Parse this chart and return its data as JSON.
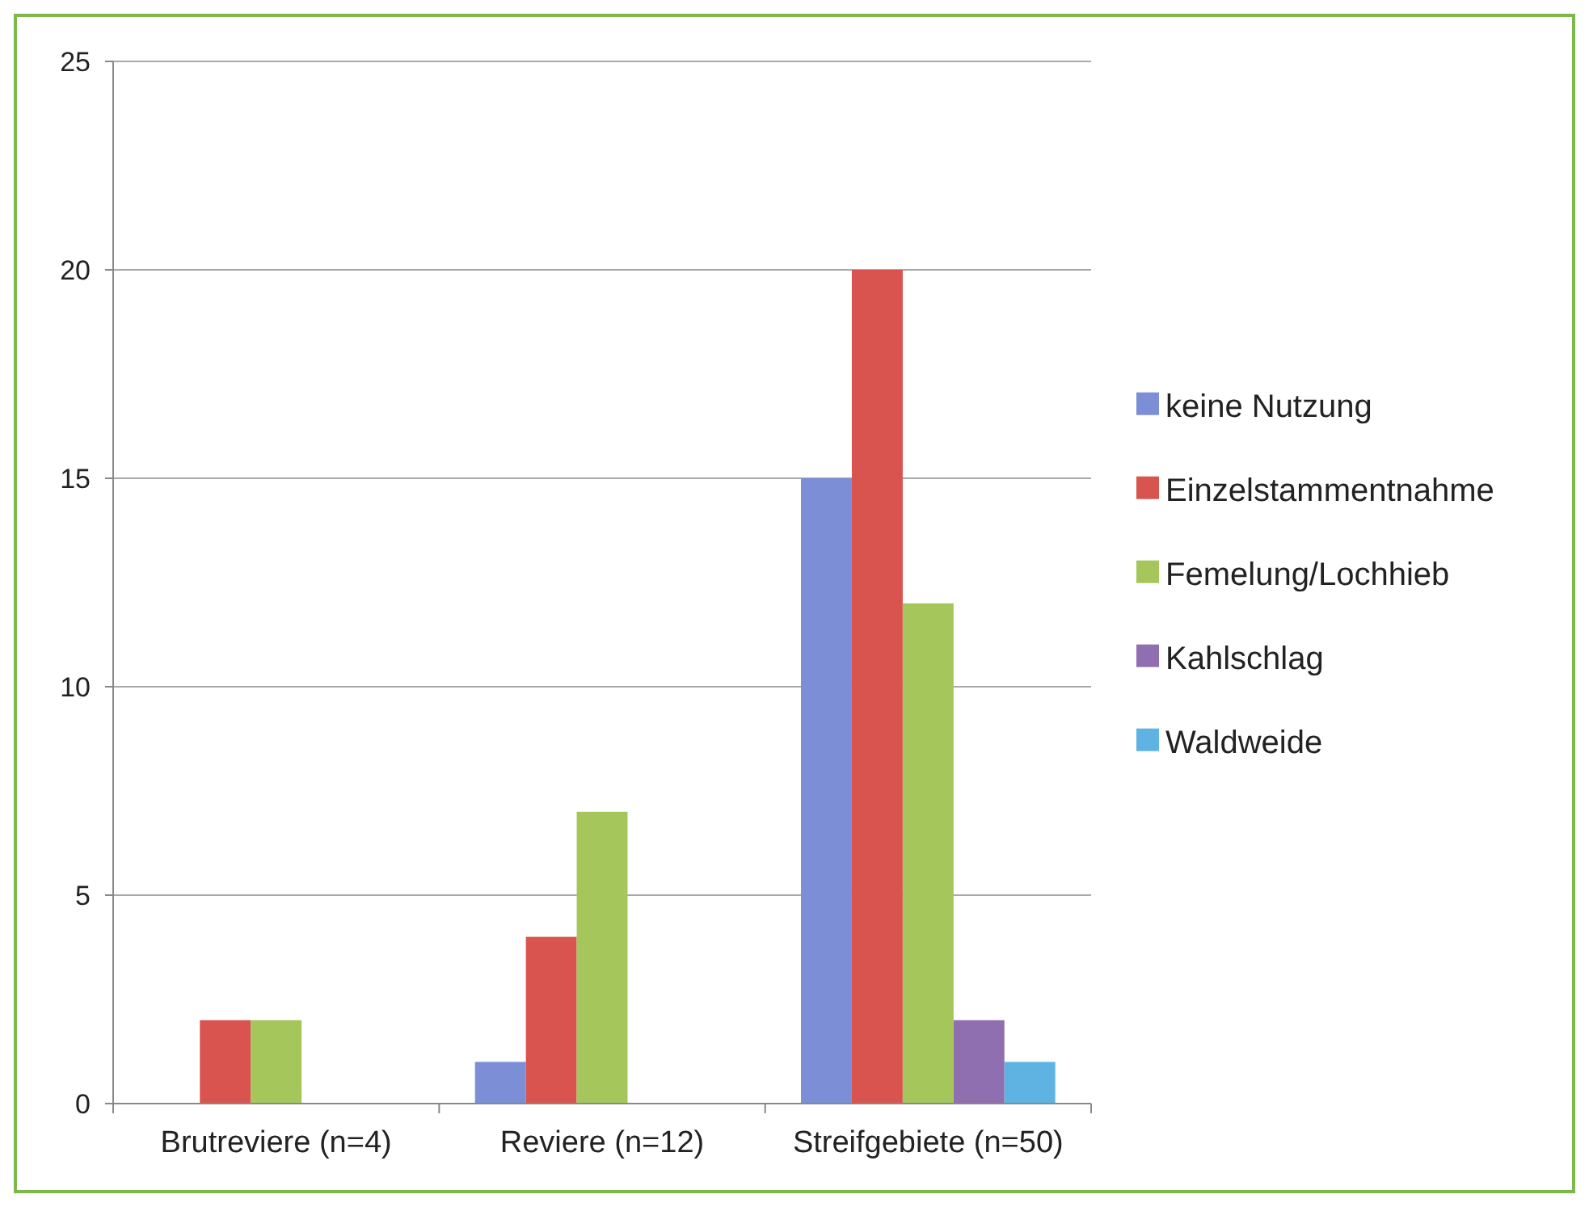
{
  "chart_data": {
    "type": "bar",
    "categories": [
      "Brutreviere (n=4)",
      "Reviere (n=12)",
      "Streifgebiete (n=50)"
    ],
    "series": [
      {
        "name": "keine Nutzung",
        "color": "#7b8ed6",
        "values": [
          0,
          1,
          15
        ]
      },
      {
        "name": "Einzelstammentnahme",
        "color": "#d9534f",
        "values": [
          2,
          4,
          20
        ]
      },
      {
        "name": "Femelung/Lochhieb",
        "color": "#a4c65a",
        "values": [
          2,
          7,
          12
        ]
      },
      {
        "name": "Kahlschlag",
        "color": "#8f6fb0",
        "values": [
          0,
          0,
          2
        ]
      },
      {
        "name": "Waldweide",
        "color": "#5fb3e3",
        "values": [
          0,
          0,
          1
        ]
      }
    ],
    "ylim": [
      0,
      25
    ],
    "yticks": [
      0,
      5,
      10,
      15,
      20,
      25
    ],
    "grid": "y",
    "legend": "right"
  }
}
